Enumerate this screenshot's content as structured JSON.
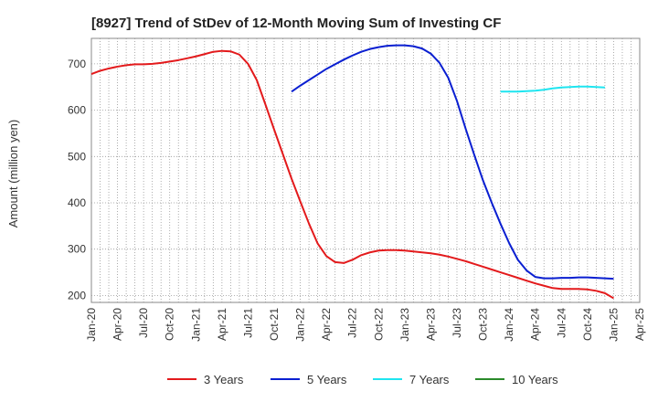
{
  "chart_data": {
    "type": "line",
    "title": "[8927]  Trend of StDev of 12-Month Moving Sum of Investing CF",
    "ylabel": "Amount (million yen)",
    "xlabel": "",
    "ylim": [
      185,
      755
    ],
    "yticks": [
      200,
      300,
      400,
      500,
      600,
      700
    ],
    "ytick_labels": [
      "200",
      "300",
      "400",
      "500",
      "600",
      "700"
    ],
    "xtick_labels": [
      "Jan-20",
      "Apr-20",
      "Jul-20",
      "Oct-20",
      "Jan-21",
      "Apr-21",
      "Jul-21",
      "Oct-21",
      "Jan-22",
      "Apr-22",
      "Jul-22",
      "Oct-22",
      "Jan-23",
      "Apr-23",
      "Jul-23",
      "Oct-23",
      "Jan-24",
      "Apr-24",
      "Jul-24",
      "Oct-24",
      "Jan-25",
      "Apr-25"
    ],
    "x_start": "Jan-20",
    "grid": true,
    "legend_position": "bottom",
    "series": [
      {
        "name": "3 Years",
        "color": "#e31a1c",
        "values": [
          678,
          685,
          690,
          694,
          697,
          699,
          699,
          700,
          702,
          705,
          708,
          712,
          716,
          721,
          726,
          728,
          727,
          720,
          700,
          665,
          612,
          558,
          505,
          452,
          403,
          355,
          312,
          285,
          272,
          270,
          277,
          287,
          293,
          297,
          298,
          298,
          297,
          295,
          293,
          291,
          288,
          284,
          279,
          274,
          268,
          262,
          256,
          250,
          244,
          238,
          232,
          226,
          221,
          216,
          214,
          214,
          214,
          213,
          210,
          205,
          194
        ]
      },
      {
        "name": "5 Years",
        "color": "#0a1fd1",
        "start_index": 23,
        "values": [
          640,
          653,
          665,
          677,
          689,
          699,
          709,
          718,
          726,
          732,
          736,
          739,
          740,
          740,
          738,
          733,
          722,
          702,
          670,
          620,
          560,
          503,
          448,
          400,
          355,
          313,
          277,
          254,
          240,
          237,
          237,
          238,
          238,
          239,
          239,
          238,
          237,
          236
        ]
      },
      {
        "name": "7 Years",
        "color": "#1ee5f0",
        "start_index": 47,
        "values": [
          640,
          640,
          640,
          641,
          642,
          644,
          647,
          649,
          650,
          651,
          651,
          650,
          649
        ]
      },
      {
        "name": "10 Years",
        "color": "#2a8a2a",
        "start_index": 0,
        "values": []
      }
    ]
  }
}
